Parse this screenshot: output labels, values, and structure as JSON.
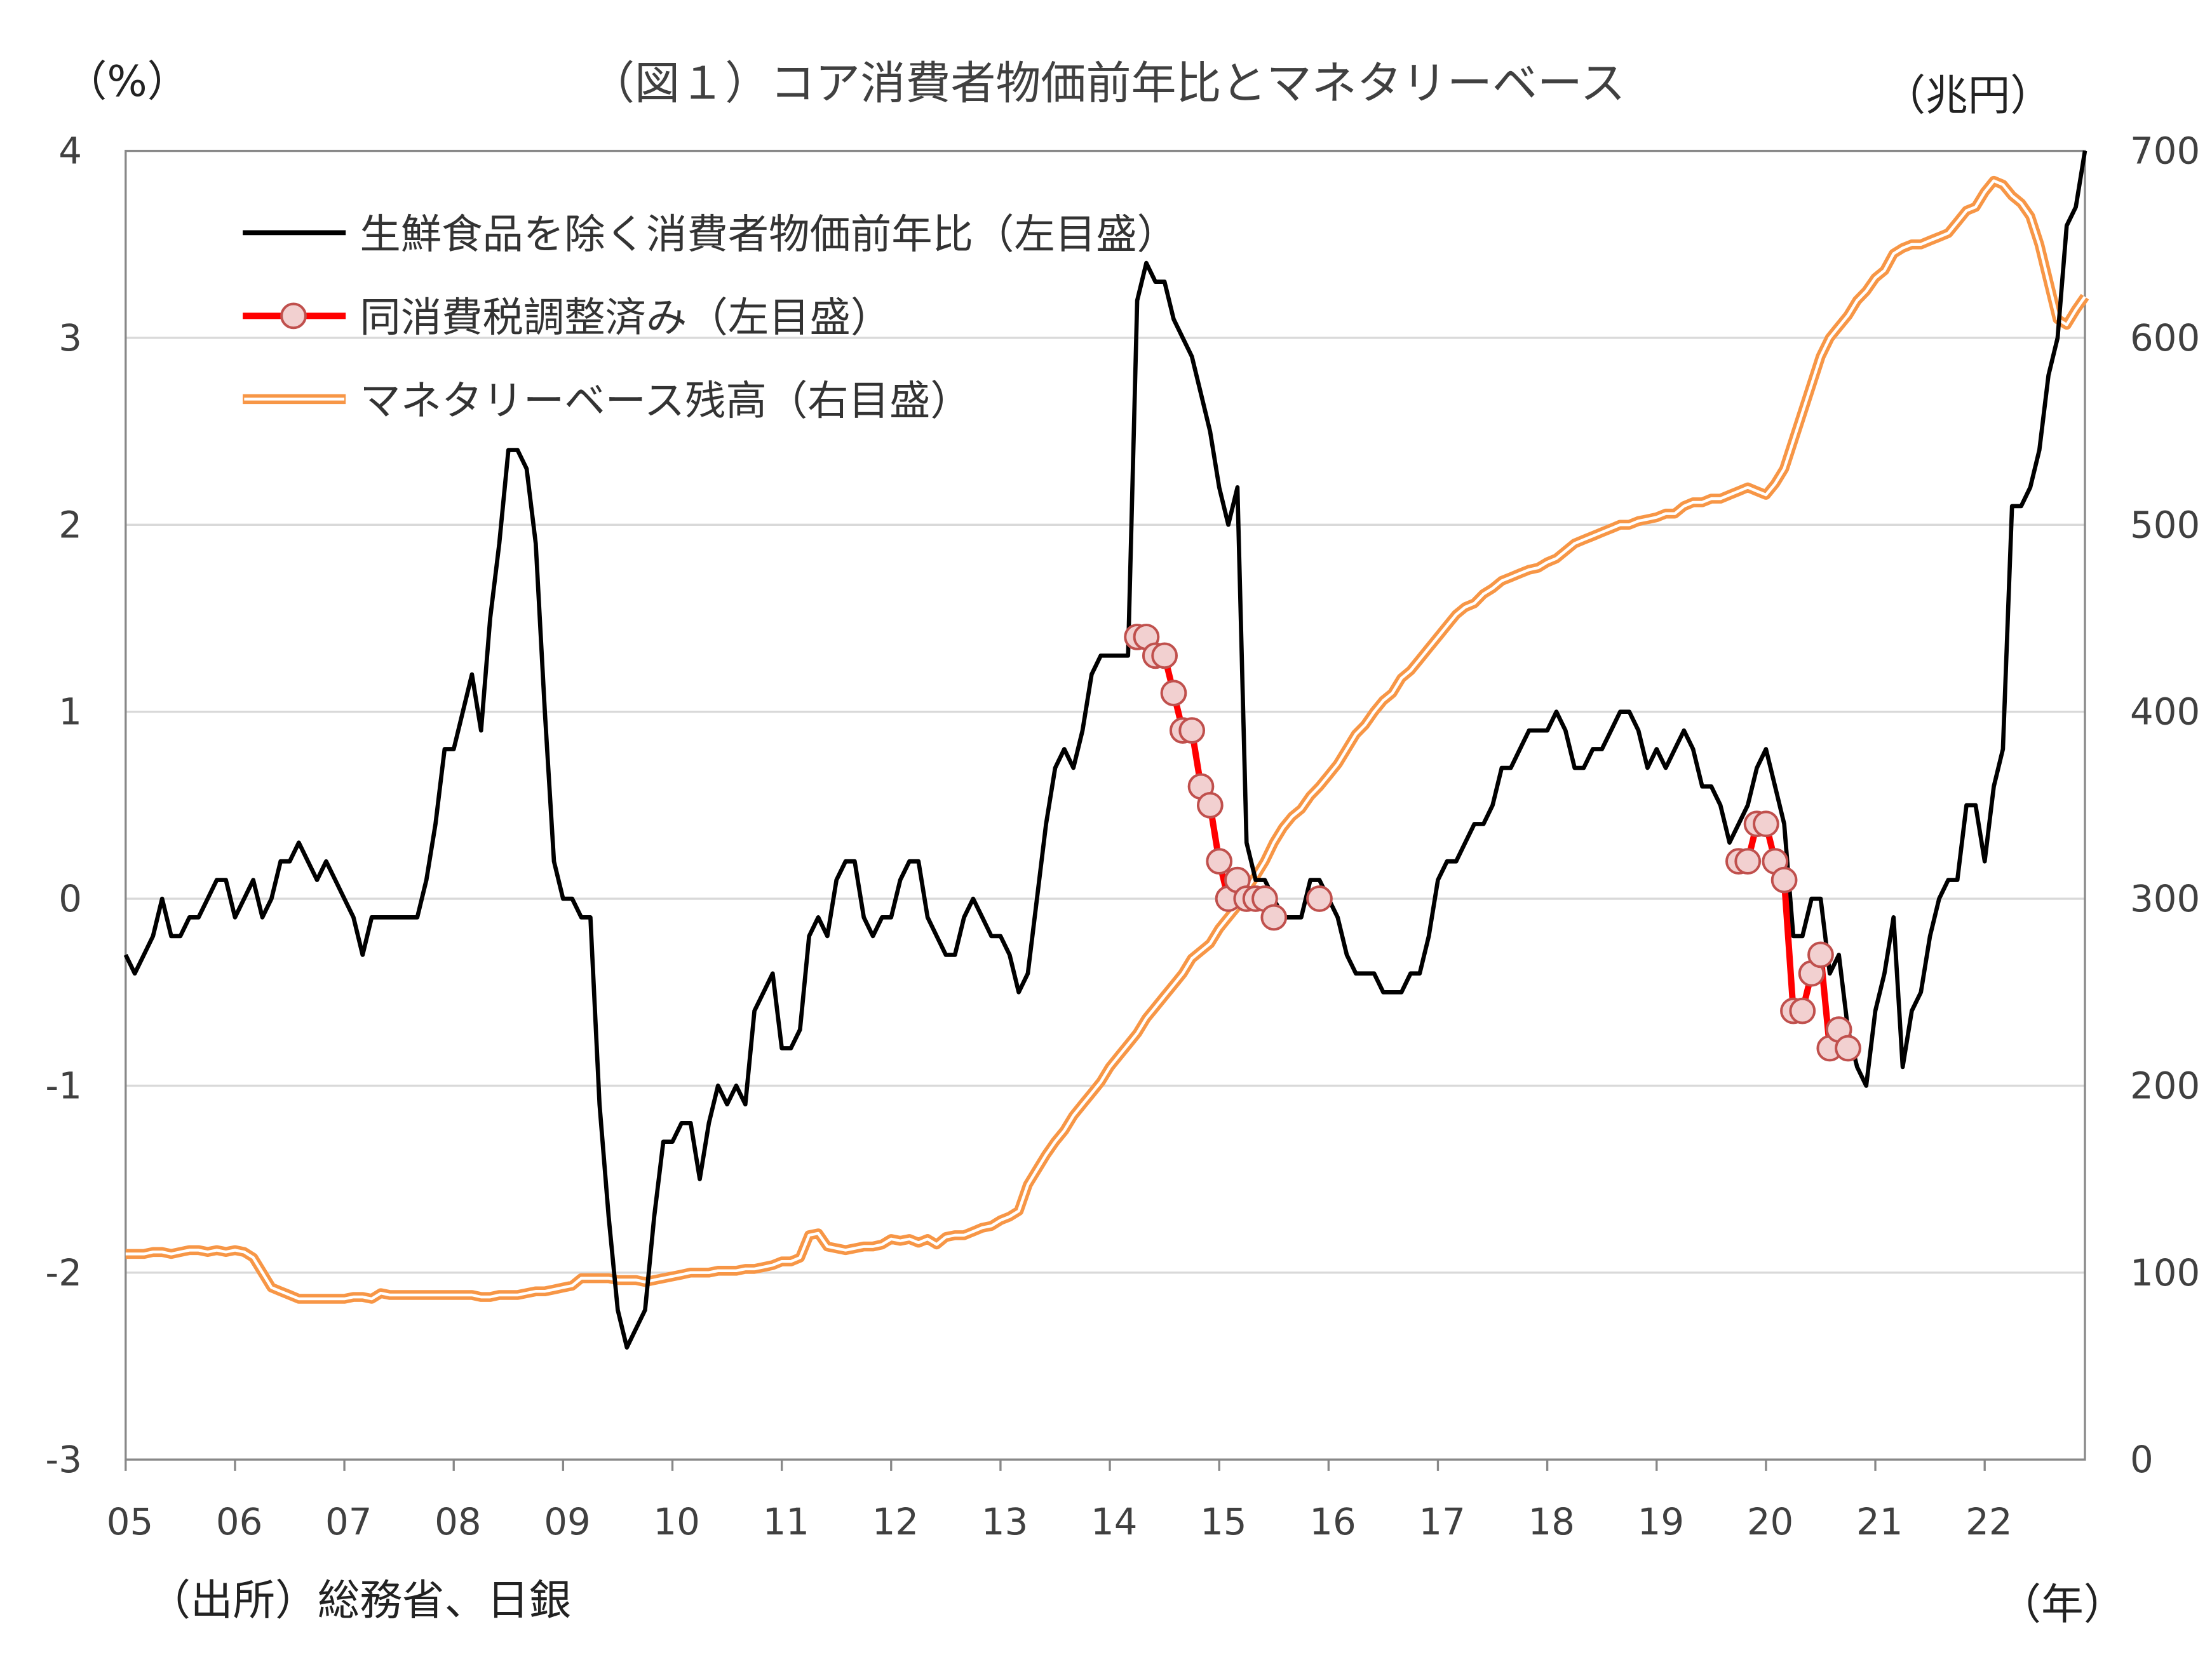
{
  "chart_data": {
    "type": "line",
    "title": "（図１）コア消費者物価前年比とマネタリーベース",
    "ylabel_left": "（%）",
    "ylabel_right": "（兆円）",
    "xlabel": "（年）",
    "source": "（出所）総務省、日銀",
    "ylim_left": [
      -3,
      4
    ],
    "ylim_right": [
      0,
      700
    ],
    "yticks_left": [
      "4",
      "3",
      "2",
      "1",
      "0",
      "-1",
      "-2",
      "-3"
    ],
    "yticks_right": [
      "700",
      "600",
      "500",
      "400",
      "300",
      "200",
      "100",
      "0"
    ],
    "xticks": [
      "05",
      "06",
      "07",
      "08",
      "09",
      "10",
      "11",
      "12",
      "13",
      "14",
      "15",
      "16",
      "17",
      "18",
      "19",
      "20",
      "21",
      "22"
    ],
    "x_start": "2005-01",
    "x_end": "2022-12",
    "grid": "horizontal",
    "legend_position": "top-left",
    "series": [
      {
        "name": "生鮮食品を除く消費者物価前年比（左目盛）",
        "axis": "left",
        "color": "#000000",
        "values": [
          -0.3,
          -0.4,
          -0.3,
          -0.2,
          0.0,
          -0.2,
          -0.2,
          -0.1,
          -0.1,
          0.0,
          0.1,
          0.1,
          -0.1,
          0.0,
          0.1,
          -0.1,
          0.0,
          0.2,
          0.2,
          0.3,
          0.2,
          0.1,
          0.2,
          0.1,
          0.0,
          -0.1,
          -0.3,
          -0.1,
          -0.1,
          -0.1,
          -0.1,
          -0.1,
          -0.1,
          0.1,
          0.4,
          0.8,
          0.8,
          1.0,
          1.2,
          0.9,
          1.5,
          1.9,
          2.4,
          2.4,
          2.3,
          1.9,
          1.0,
          0.2,
          0.0,
          0.0,
          -0.1,
          -0.1,
          -1.1,
          -1.7,
          -2.2,
          -2.4,
          -2.3,
          -2.2,
          -1.7,
          -1.3,
          -1.3,
          -1.2,
          -1.2,
          -1.5,
          -1.2,
          -1.0,
          -1.1,
          -1.0,
          -1.1,
          -0.6,
          -0.5,
          -0.4,
          -0.8,
          -0.8,
          -0.7,
          -0.2,
          -0.1,
          -0.2,
          0.1,
          0.2,
          0.2,
          -0.1,
          -0.2,
          -0.1,
          -0.1,
          0.1,
          0.2,
          0.2,
          -0.1,
          -0.2,
          -0.3,
          -0.3,
          -0.1,
          0.0,
          -0.1,
          -0.2,
          -0.2,
          -0.3,
          -0.5,
          -0.4,
          0.0,
          0.4,
          0.7,
          0.8,
          0.7,
          0.9,
          1.2,
          1.3,
          1.3,
          1.3,
          1.3,
          3.2,
          3.4,
          3.3,
          3.3,
          3.1,
          3.0,
          2.9,
          2.7,
          2.5,
          2.2,
          2.0,
          2.2,
          0.3,
          0.1,
          0.1,
          0.0,
          -0.1,
          -0.1,
          -0.1,
          0.1,
          0.1,
          0.0,
          -0.1,
          -0.3,
          -0.4,
          -0.4,
          -0.4,
          -0.5,
          -0.5,
          -0.5,
          -0.4,
          -0.4,
          -0.2,
          0.1,
          0.2,
          0.2,
          0.3,
          0.4,
          0.4,
          0.5,
          0.7,
          0.7,
          0.8,
          0.9,
          0.9,
          0.9,
          1.0,
          0.9,
          0.7,
          0.7,
          0.8,
          0.8,
          0.9,
          1.0,
          1.0,
          0.9,
          0.7,
          0.8,
          0.7,
          0.8,
          0.9,
          0.8,
          0.6,
          0.6,
          0.5,
          0.3,
          0.4,
          0.5,
          0.7,
          0.8,
          0.6,
          0.4,
          -0.2,
          -0.2,
          0.0,
          0.0,
          -0.4,
          -0.3,
          -0.7,
          -0.9,
          -1.0,
          -0.6,
          -0.4,
          -0.1,
          -0.9,
          -0.6,
          -0.5,
          -0.2,
          0.0,
          0.1,
          0.1,
          0.5,
          0.5,
          0.2,
          0.6,
          0.8,
          2.1,
          2.1,
          2.2,
          2.4,
          2.8,
          3.0,
          3.6,
          3.7,
          4.0
        ]
      },
      {
        "name": "同消費税調整済み（左目盛）",
        "axis": "left",
        "color": "#ff0000",
        "marker_fill": "#f2d0d0",
        "marker_stroke": "#c0504d",
        "segments": [
          {
            "start": "2014-04",
            "values": [
              1.4,
              1.4,
              1.3,
              1.3,
              1.1,
              0.9,
              0.9,
              0.6,
              0.5,
              0.2,
              0.0,
              0.1,
              0.0,
              0.0,
              0.0,
              -0.1
            ]
          },
          {
            "start": "2015-12",
            "values": [
              0.0
            ]
          },
          {
            "start": "2019-10",
            "values": [
              0.2,
              0.2,
              0.4,
              0.4,
              0.2,
              0.1,
              -0.6,
              -0.6,
              -0.4,
              -0.3,
              -0.8,
              -0.7,
              -0.8
            ]
          }
        ]
      },
      {
        "name": "マネタリーベース残高（右目盛）",
        "axis": "right",
        "color": "#f79646",
        "values": [
          110,
          110,
          110,
          111,
          111,
          110,
          111,
          112,
          112,
          111,
          112,
          111,
          112,
          111,
          108,
          100,
          92,
          90,
          88,
          86,
          86,
          86,
          86,
          86,
          86,
          87,
          87,
          86,
          89,
          88,
          88,
          88,
          88,
          88,
          88,
          88,
          88,
          88,
          88,
          87,
          87,
          88,
          88,
          88,
          89,
          90,
          90,
          91,
          92,
          93,
          97,
          97,
          97,
          97,
          96,
          96,
          96,
          95,
          96,
          97,
          98,
          99,
          100,
          100,
          100,
          101,
          101,
          101,
          102,
          102,
          103,
          104,
          106,
          106,
          108,
          120,
          121,
          114,
          113,
          112,
          113,
          114,
          114,
          115,
          118,
          117,
          118,
          116,
          118,
          115,
          119,
          120,
          120,
          122,
          124,
          125,
          128,
          130,
          133,
          147,
          155,
          163,
          170,
          176,
          184,
          190,
          196,
          202,
          210,
          216,
          222,
          228,
          236,
          242,
          248,
          254,
          260,
          268,
          272,
          276,
          284,
          290,
          296,
          305,
          312,
          320,
          330,
          338,
          344,
          348,
          355,
          360,
          366,
          372,
          380,
          388,
          393,
          400,
          406,
          410,
          418,
          422,
          428,
          434,
          440,
          446,
          452,
          456,
          458,
          463,
          466,
          470,
          472,
          474,
          476,
          477,
          480,
          482,
          486,
          490,
          492,
          494,
          496,
          498,
          500,
          500,
          502,
          503,
          504,
          506,
          506,
          510,
          512,
          512,
          514,
          514,
          516,
          518,
          520,
          518,
          516,
          522,
          530,
          545,
          560,
          575,
          590,
          600,
          606,
          612,
          620,
          625,
          632,
          636,
          645,
          648,
          650,
          650,
          652,
          654,
          656,
          662,
          668,
          670,
          678,
          684,
          682,
          676,
          672,
          665,
          650,
          630,
          610,
          607,
          615,
          622
        ]
      }
    ]
  }
}
